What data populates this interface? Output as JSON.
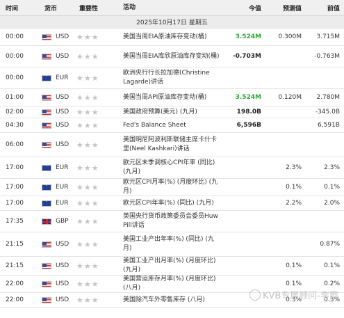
{
  "header": {
    "time": "时间",
    "currency": "货币",
    "importance": "重要性",
    "event": "活动",
    "actual": "今值",
    "forecast": "预测值",
    "previous": "前值"
  },
  "date_label": "2025年10月17日  星期五",
  "rows": [
    {
      "time": "00:00",
      "flag": "us",
      "currency": "USD",
      "stars": "★★★",
      "event": "美国当周EIA原油库存变动(桶)",
      "actual": "3.524M",
      "actual_style": "green",
      "forecast": "0.300M",
      "previous": "3.715M"
    },
    {
      "time": "00:00",
      "flag": "us",
      "currency": "USD",
      "stars": "★★★",
      "event": "美国当周EIA库欣原油库存变动(桶)",
      "actual": "-0.703M",
      "actual_style": "bold",
      "forecast": "",
      "previous": "-0.763M"
    },
    {
      "time": "00:00",
      "flag": "eu",
      "currency": "EUR",
      "stars": "★★★",
      "event": "欧洲央行行长拉加德(Christine Lagarde)讲话",
      "actual": "",
      "actual_style": "",
      "forecast": "",
      "previous": ""
    },
    {
      "time": "01:00",
      "flag": "us",
      "currency": "USD",
      "stars": "★★★",
      "event": "美国当周API原油库存变动(桶)",
      "actual": "3.524M",
      "actual_style": "green",
      "forecast": "0.120M",
      "previous": "2.780M"
    },
    {
      "time": "02:00",
      "flag": "us",
      "currency": "USD",
      "stars": "★★★",
      "event": "美国政府预算(美元) (九月)",
      "actual": "198.0B",
      "actual_style": "bold",
      "forecast": "",
      "previous": "-345.0B"
    },
    {
      "time": "04:30",
      "flag": "us",
      "currency": "USD",
      "stars": "★★★",
      "event": "Fed's Balance Sheet",
      "actual": "6,596B",
      "actual_style": "bold",
      "forecast": "",
      "previous": "6,591B"
    },
    {
      "time": "06:00",
      "flag": "us",
      "currency": "USD",
      "stars": "★★★",
      "event": "美国明尼阿波利斯联储主席卡什卡里(Neel Kashkari)讲话",
      "actual": "",
      "actual_style": "",
      "forecast": "",
      "previous": ""
    },
    {
      "time": "17:00",
      "flag": "eu",
      "currency": "EUR",
      "stars": "★★★",
      "event": "欧元区未季调核心CPI年率 (同比) (九月)",
      "actual": "",
      "actual_style": "",
      "forecast": "2.3%",
      "previous": "2.3%"
    },
    {
      "time": "17:00",
      "flag": "eu",
      "currency": "EUR",
      "stars": "★★★",
      "event": "欧元区CPI月率(%) (月度环比) (九月)",
      "actual": "",
      "actual_style": "",
      "forecast": "0.1%",
      "previous": "0.1%"
    },
    {
      "time": "17:00",
      "flag": "eu",
      "currency": "EUR",
      "stars": "★★★",
      "event": "欧元区CPI年率(%) (同比) (九月)",
      "actual": "",
      "actual_style": "",
      "forecast": "2.2%",
      "previous": "2.0%"
    },
    {
      "time": "17:35",
      "flag": "gb",
      "currency": "GBP",
      "stars": "★★★",
      "event": "英国央行货币政策委员会委员Huw Pill讲话",
      "actual": "",
      "actual_style": "",
      "forecast": "",
      "previous": ""
    },
    {
      "time": "21:15",
      "flag": "us",
      "currency": "USD",
      "stars": "★★★",
      "event": "美国工业产出年率(%) (同比) (九月)",
      "actual": "",
      "actual_style": "",
      "forecast": "",
      "previous": "0.87%"
    },
    {
      "time": "21:15",
      "flag": "us",
      "currency": "USD",
      "stars": "★★★",
      "event": "美国工业产出月率(%) (月度环比) (九月)",
      "actual": "",
      "actual_style": "",
      "forecast": "0.1%",
      "previous": "0.1%"
    },
    {
      "time": "22:00",
      "flag": "us",
      "currency": "USD",
      "stars": "★★★",
      "event": "美国营运库存月率(%) (月度环比) (八月)",
      "actual": "",
      "actual_style": "",
      "forecast": "0.1%",
      "previous": "0.2%"
    },
    {
      "time": "22:00",
      "flag": "us",
      "currency": "USD",
      "stars": "★★★",
      "event": "美国除汽车外零售库存 (八月)",
      "actual": "",
      "actual_style": "",
      "forecast": "0.3%",
      "previous": "0.3%"
    }
  ],
  "watermark": "KVB专属顾问-李霞"
}
